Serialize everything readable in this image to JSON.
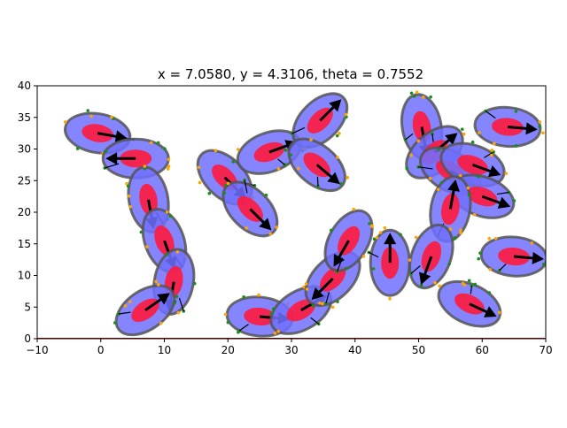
{
  "chart_data": {
    "type": "scatter",
    "title": "x = 7.0580, y = 4.3106, theta = 0.7552",
    "xlim": [
      -10,
      70
    ],
    "ylim": [
      0,
      40
    ],
    "x_ticks": [
      -10,
      0,
      10,
      20,
      30,
      40,
      50,
      60,
      70
    ],
    "y_ticks": [
      0,
      5,
      10,
      15,
      20,
      25,
      30,
      35,
      40
    ],
    "grid": false,
    "colors": {
      "outer_ellipse_fill": "#7070ff",
      "outer_ellipse_edge": "#555555",
      "inner_ellipse": "#ff1a3c",
      "arrow": "#000000",
      "dot_green": "#1a8c1a",
      "dot_orange": "#ffa500",
      "baseline": "#b00000"
    },
    "objects": [
      {
        "cx": -0.5,
        "cy": 32.5,
        "arrow_angle": -10
      },
      {
        "cx": 5.5,
        "cy": 28.5,
        "arrow_angle": 180
      },
      {
        "cx": 7.5,
        "cy": 22,
        "arrow_angle": -80
      },
      {
        "cx": 10,
        "cy": 15.5,
        "arrow_angle": -70
      },
      {
        "cx": 11.5,
        "cy": 9,
        "arrow_angle": -100
      },
      {
        "cx": 7,
        "cy": 4.5,
        "arrow_angle": 35
      },
      {
        "cx": 19.5,
        "cy": 25.5,
        "arrow_angle": -45
      },
      {
        "cx": 23.5,
        "cy": 20.5,
        "arrow_angle": -45
      },
      {
        "cx": 26.5,
        "cy": 29.5,
        "arrow_angle": 20
      },
      {
        "cx": 34.5,
        "cy": 34.5,
        "arrow_angle": 45
      },
      {
        "cx": 34,
        "cy": 27.5,
        "arrow_angle": -40
      },
      {
        "cx": 25,
        "cy": 3.5,
        "arrow_angle": -5
      },
      {
        "cx": 31.5,
        "cy": 4.5,
        "arrow_angle": 30
      },
      {
        "cx": 36.5,
        "cy": 9.5,
        "arrow_angle": -135
      },
      {
        "cx": 39,
        "cy": 15.5,
        "arrow_angle": -120
      },
      {
        "cx": 45.5,
        "cy": 12,
        "arrow_angle": 90
      },
      {
        "cx": 50.5,
        "cy": 33.5,
        "arrow_angle": -80
      },
      {
        "cx": 52.5,
        "cy": 29.5,
        "arrow_angle": 40
      },
      {
        "cx": 55,
        "cy": 26.5,
        "arrow_angle": -30
      },
      {
        "cx": 58.5,
        "cy": 27.5,
        "arrow_angle": -20
      },
      {
        "cx": 60,
        "cy": 22.5,
        "arrow_angle": -20
      },
      {
        "cx": 55,
        "cy": 20.5,
        "arrow_angle": 80
      },
      {
        "cx": 52,
        "cy": 13,
        "arrow_angle": -110
      },
      {
        "cx": 58,
        "cy": 5.5,
        "arrow_angle": -25
      },
      {
        "cx": 64,
        "cy": 33.5,
        "arrow_angle": -5
      },
      {
        "cx": 65,
        "cy": 13,
        "arrow_angle": -5
      }
    ]
  }
}
